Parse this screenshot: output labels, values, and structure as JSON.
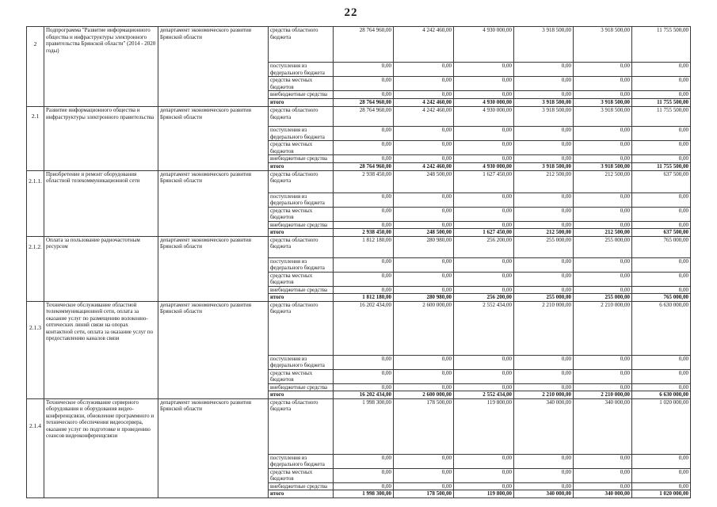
{
  "page_number": "22",
  "table": {
    "blocks": [
      {
        "num": "2",
        "name": "Подпрограмма \"Развитие информационного общества и инфраструктуры электронного правительства Брянской области\" (2014 - 2020 годы)",
        "department": "департамент экономического развития Брянской области",
        "rows": [
          {
            "source": "средства областного бюджета",
            "bold": false,
            "values": [
              "28 764 960,00",
              "4 242 460,00",
              "4 930 000,00",
              "3 918 500,00",
              "3 918 500,00",
              "11 755 500,00"
            ]
          },
          {
            "source": "поступления из федерального бюджета",
            "bold": false,
            "values": [
              "0,00",
              "0,00",
              "0,00",
              "0,00",
              "0,00",
              "0,00"
            ]
          },
          {
            "source": "средства местных бюджетов",
            "bold": false,
            "values": [
              "0,00",
              "0,00",
              "0,00",
              "0,00",
              "0,00",
              "0,00"
            ]
          },
          {
            "source": "внебюджетные средства",
            "bold": false,
            "values": [
              "0,00",
              "0,00",
              "0,00",
              "0,00",
              "0,00",
              "0,00"
            ]
          },
          {
            "source": "итого",
            "bold": true,
            "values": [
              "28 764 960,00",
              "4 242 460,00",
              "4 930 000,00",
              "3 918 500,00",
              "3 918 500,00",
              "11 755 500,00"
            ]
          }
        ]
      },
      {
        "num": "2.1",
        "name": "Развитие информационного общества и инфраструктуры электронного правительства",
        "department": "департамент экономического развития Брянской области",
        "rows": [
          {
            "source": "средства областного бюджета",
            "bold": false,
            "values": [
              "28 764 960,00",
              "4 242 460,00",
              "4 930 000,00",
              "3 918 500,00",
              "3 918 500,00",
              "11 755 500,00"
            ]
          },
          {
            "source": "поступления из федерального бюджета",
            "bold": false,
            "values": [
              "0,00",
              "0,00",
              "0,00",
              "0,00",
              "0,00",
              "0,00"
            ]
          },
          {
            "source": "средства местных бюджетов",
            "bold": false,
            "values": [
              "0,00",
              "0,00",
              "0,00",
              "0,00",
              "0,00",
              "0,00"
            ]
          },
          {
            "source": "внебюджетные средства",
            "bold": false,
            "values": [
              "0,00",
              "0,00",
              "0,00",
              "0,00",
              "0,00",
              "0,00"
            ]
          },
          {
            "source": "итого",
            "bold": true,
            "values": [
              "28 764 960,00",
              "4 242 460,00",
              "4 930 000,00",
              "3 918 500,00",
              "3 918 500,00",
              "11 755 500,00"
            ]
          }
        ]
      },
      {
        "num": "2.1.1.",
        "name": "Приобретение и ремонт оборудования областной телекоммуникационной сети",
        "department": "департамент экономического развития Брянской области",
        "rows": [
          {
            "source": "средства областного бюджета",
            "bold": false,
            "values": [
              "2 938 450,00",
              "248 500,00",
              "1 627 450,00",
              "212 500,00",
              "212 500,00",
              "637 500,00"
            ]
          },
          {
            "source": "поступления из федерального бюджета",
            "bold": false,
            "values": [
              "0,00",
              "0,00",
              "0,00",
              "0,00",
              "0,00",
              "0,00"
            ]
          },
          {
            "source": "средства местных бюджетов",
            "bold": false,
            "values": [
              "0,00",
              "0,00",
              "0,00",
              "0,00",
              "0,00",
              "0,00"
            ]
          },
          {
            "source": "внебюджетные средства",
            "bold": false,
            "values": [
              "0,00",
              "0,00",
              "0,00",
              "0,00",
              "0,00",
              "0,00"
            ]
          },
          {
            "source": "итого",
            "bold": true,
            "values": [
              "2 938 450,00",
              "248 500,00",
              "1 627 450,00",
              "212 500,00",
              "212 500,00",
              "637 500,00"
            ]
          }
        ]
      },
      {
        "num": "2.1.2.",
        "name": "Оплата за пользование радиочастотным ресурсом",
        "department": "департамент экономического развития Брянской области",
        "rows": [
          {
            "source": "средства областного бюджета",
            "bold": false,
            "values": [
              "1 812 180,00",
              "280 980,00",
              "256 200,00",
              "255 000,00",
              "255 000,00",
              "765 000,00"
            ]
          },
          {
            "source": "поступления из федерального бюджета",
            "bold": false,
            "values": [
              "0,00",
              "0,00",
              "0,00",
              "0,00",
              "0,00",
              "0,00"
            ]
          },
          {
            "source": "средства местных бюджетов",
            "bold": false,
            "values": [
              "0,00",
              "0,00",
              "0,00",
              "0,00",
              "0,00",
              "0,00"
            ]
          },
          {
            "source": "внебюджетные средства",
            "bold": false,
            "values": [
              "0,00",
              "0,00",
              "0,00",
              "0,00",
              "0,00",
              "0,00"
            ]
          },
          {
            "source": "итого",
            "bold": true,
            "values": [
              "1 812 180,00",
              "280 980,00",
              "256 200,00",
              "255 000,00",
              "255 000,00",
              "765 000,00"
            ]
          }
        ]
      },
      {
        "num": "2.1.3",
        "name": "Техническое обслуживание областной телекоммуникационной сети, оплата за оказание услуг по размещению волоконно-оптических линий связи на опорах контактной сети, оплата за оказание услуг по предоставлению каналов связи",
        "department": "департамент экономического развития Брянской области",
        "rows": [
          {
            "source": "средства областного бюджета",
            "bold": false,
            "values": [
              "16 202 434,00",
              "2 600 000,00",
              "2 552 434,00",
              "2 210 000,00",
              "2 210 000,00",
              "6 630 000,00"
            ]
          },
          {
            "source": "поступления из федерального бюджета",
            "bold": false,
            "values": [
              "0,00",
              "0,00",
              "0,00",
              "0,00",
              "0,00",
              "0,00"
            ]
          },
          {
            "source": "средства местных бюджетов",
            "bold": false,
            "values": [
              "0,00",
              "0,00",
              "0,00",
              "0,00",
              "0,00",
              "0,00"
            ]
          },
          {
            "source": "внебюджетные средства",
            "bold": false,
            "values": [
              "0,00",
              "0,00",
              "0,00",
              "0,00",
              "0,00",
              "0,00"
            ]
          },
          {
            "source": "итого",
            "bold": true,
            "values": [
              "16 202 434,00",
              "2 600 000,00",
              "2 552 434,00",
              "2 210 000,00",
              "2 210 000,00",
              "6 630 000,00"
            ]
          }
        ]
      },
      {
        "num": "2.1.4",
        "name": "Техническое обслуживание серверного оборудования и оборудования видео-конференцсвязи, обновление программного и технического обеспечения видеосервера, оказание услуг по подготовке и проведению сеансов видеоконференцсвязи",
        "department": "департамент экономического развития Брянской области",
        "rows": [
          {
            "source": "средства областного бюджета",
            "bold": false,
            "values": [
              "1 998 300,00",
              "178 500,00",
              "119 800,00",
              "340 000,00",
              "340 000,00",
              "1 020 000,00"
            ]
          },
          {
            "source": "поступления из федерального бюджета",
            "bold": false,
            "values": [
              "0,00",
              "0,00",
              "0,00",
              "0,00",
              "0,00",
              "0,00"
            ]
          },
          {
            "source": "средства местных бюджетов",
            "bold": false,
            "values": [
              "0,00",
              "0,00",
              "0,00",
              "0,00",
              "0,00",
              "0,00"
            ]
          },
          {
            "source": "внебюджетные средства",
            "bold": false,
            "values": [
              "0,00",
              "0,00",
              "0,00",
              "0,00",
              "0,00",
              "0,00"
            ]
          },
          {
            "source": "итого",
            "bold": true,
            "values": [
              "1 998 300,00",
              "178 500,00",
              "119 800,00",
              "340 000,00",
              "340 000,00",
              "1 020 000,00"
            ]
          }
        ]
      }
    ]
  }
}
